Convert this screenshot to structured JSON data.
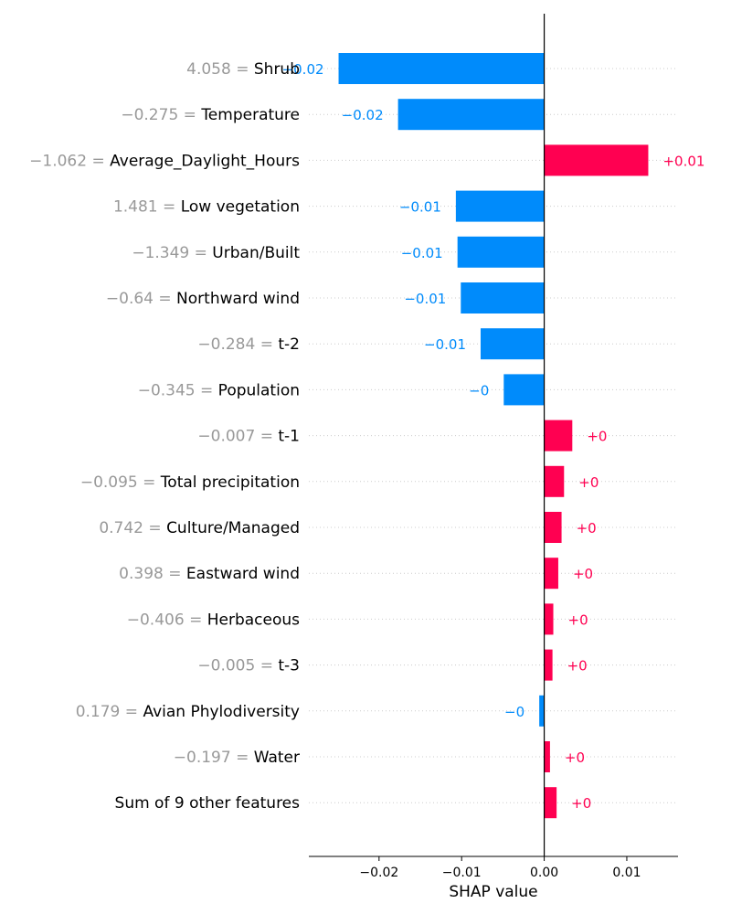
{
  "chart_data": {
    "type": "bar",
    "orientation": "horizontal",
    "xlabel": "SHAP value",
    "xlim": [
      -0.0285,
      0.0162
    ],
    "x_ticks": [
      -0.02,
      -0.01,
      0.0,
      0.01
    ],
    "x_tick_labels": [
      "−0.02",
      "−0.01",
      "0.00",
      "0.01"
    ],
    "grid": false,
    "colors": {
      "positive": "#ff0051",
      "negative": "#008bfb"
    },
    "rows": [
      {
        "feature_value": "4.058 = ",
        "feature": "Shrub",
        "value": -0.0249,
        "label": "−0.02"
      },
      {
        "feature_value": "−0.275 = ",
        "feature": "Temperature",
        "value": -0.0177,
        "label": "−0.02"
      },
      {
        "feature_value": "−1.062 = ",
        "feature": "Average_Daylight_Hours",
        "value": 0.0126,
        "label": "+0.01"
      },
      {
        "feature_value": "1.481 = ",
        "feature": "Low vegetation",
        "value": -0.0107,
        "label": "−0.01"
      },
      {
        "feature_value": "−1.349 = ",
        "feature": "Urban/Built",
        "value": -0.0105,
        "label": "−0.01"
      },
      {
        "feature_value": "−0.64 = ",
        "feature": "Northward wind",
        "value": -0.0101,
        "label": "−0.01"
      },
      {
        "feature_value": "−0.284 = ",
        "feature": "t-2",
        "value": -0.0077,
        "label": "−0.01"
      },
      {
        "feature_value": "−0.345 = ",
        "feature": "Population",
        "value": -0.0049,
        "label": "−0"
      },
      {
        "feature_value": "−0.007 = ",
        "feature": "t-1",
        "value": 0.0034,
        "label": "+0"
      },
      {
        "feature_value": "−0.095 = ",
        "feature": "Total precipitation",
        "value": 0.0024,
        "label": "+0"
      },
      {
        "feature_value": "0.742 = ",
        "feature": "Culture/Managed",
        "value": 0.0021,
        "label": "+0"
      },
      {
        "feature_value": "0.398 = ",
        "feature": "Eastward wind",
        "value": 0.0017,
        "label": "+0"
      },
      {
        "feature_value": "−0.406 = ",
        "feature": "Herbaceous",
        "value": 0.0011,
        "label": "+0"
      },
      {
        "feature_value": "−0.005 = ",
        "feature": "t-3",
        "value": 0.001,
        "label": "+0"
      },
      {
        "feature_value": "0.179 = ",
        "feature": "Avian Phylodiversity",
        "value": -0.0006,
        "label": "−0"
      },
      {
        "feature_value": "−0.197 = ",
        "feature": "Water",
        "value": 0.0007,
        "label": "+0"
      },
      {
        "feature_value": "",
        "feature": "Sum of 9 other features",
        "value": 0.0015,
        "label": "+0"
      }
    ]
  }
}
